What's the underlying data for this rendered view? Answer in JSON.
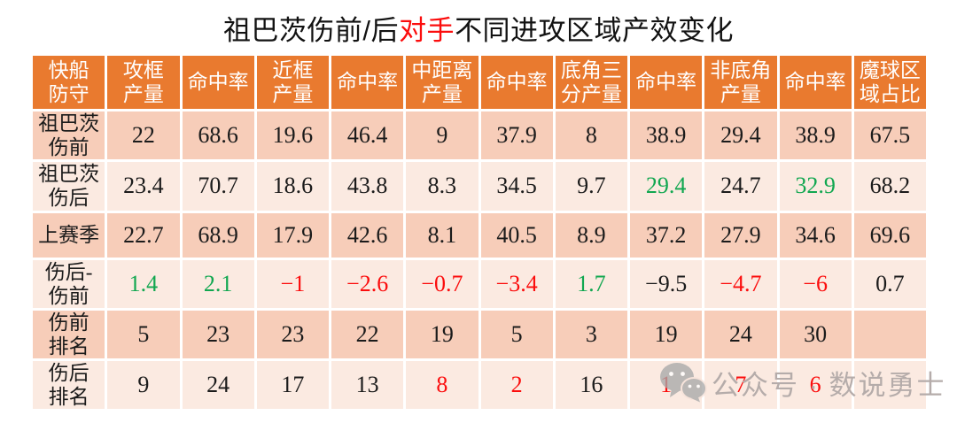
{
  "title": {
    "prefix": "祖巴茨伤前/后",
    "highlight": "对手",
    "suffix": "不同进攻区域产效变化",
    "highlight_color": "#fb0d0d"
  },
  "colors": {
    "header_bg": "#e97a2f",
    "header_text": "#ffffff",
    "row_dark": "#f7cdb9",
    "row_light": "#fbeae1",
    "cell_text": {
      "black": "#1b1b1b",
      "green": "#11a750",
      "red": "#fb0d0d"
    },
    "watermark_gray": "#b5acaa"
  },
  "table": {
    "columns": [
      "快船\n防守",
      "攻框\n产量",
      "命中率",
      "近框\n产量",
      "命中率",
      "中距离\n产量",
      "命中率",
      "底角三\n分产量",
      "命中率",
      "非底角\n产量",
      "命中率",
      "魔球区\n域占比"
    ],
    "rows": [
      {
        "label": "祖巴茨\n伤前",
        "shade": "dark",
        "cells": [
          {
            "v": "22",
            "c": "black"
          },
          {
            "v": "68.6",
            "c": "black"
          },
          {
            "v": "19.6",
            "c": "black"
          },
          {
            "v": "46.4",
            "c": "black"
          },
          {
            "v": "9",
            "c": "black"
          },
          {
            "v": "37.9",
            "c": "black"
          },
          {
            "v": "8",
            "c": "black"
          },
          {
            "v": "38.9",
            "c": "black"
          },
          {
            "v": "29.4",
            "c": "black"
          },
          {
            "v": "38.9",
            "c": "black"
          },
          {
            "v": "67.5",
            "c": "black"
          }
        ]
      },
      {
        "label": "祖巴茨\n伤后",
        "shade": "light",
        "cells": [
          {
            "v": "23.4",
            "c": "black"
          },
          {
            "v": "70.7",
            "c": "black"
          },
          {
            "v": "18.6",
            "c": "black"
          },
          {
            "v": "43.8",
            "c": "black"
          },
          {
            "v": "8.3",
            "c": "black"
          },
          {
            "v": "34.5",
            "c": "black"
          },
          {
            "v": "9.7",
            "c": "black"
          },
          {
            "v": "29.4",
            "c": "green"
          },
          {
            "v": "24.7",
            "c": "black"
          },
          {
            "v": "32.9",
            "c": "green"
          },
          {
            "v": "68.2",
            "c": "black"
          }
        ]
      },
      {
        "label": "上赛季",
        "shade": "dark",
        "cells": [
          {
            "v": "22.7",
            "c": "black"
          },
          {
            "v": "68.9",
            "c": "black"
          },
          {
            "v": "17.9",
            "c": "black"
          },
          {
            "v": "42.6",
            "c": "black"
          },
          {
            "v": "8.1",
            "c": "black"
          },
          {
            "v": "40.5",
            "c": "black"
          },
          {
            "v": "8.9",
            "c": "black"
          },
          {
            "v": "37.2",
            "c": "black"
          },
          {
            "v": "27.9",
            "c": "black"
          },
          {
            "v": "34.6",
            "c": "black"
          },
          {
            "v": "69.6",
            "c": "black"
          }
        ]
      },
      {
        "label": "伤后-\n伤前",
        "shade": "light",
        "cells": [
          {
            "v": "1.4",
            "c": "green"
          },
          {
            "v": "2.1",
            "c": "green"
          },
          {
            "v": "−1",
            "c": "red"
          },
          {
            "v": "−2.6",
            "c": "red"
          },
          {
            "v": "−0.7",
            "c": "red"
          },
          {
            "v": "−3.4",
            "c": "red"
          },
          {
            "v": "1.7",
            "c": "green"
          },
          {
            "v": "−9.5",
            "c": "black"
          },
          {
            "v": "−4.7",
            "c": "red"
          },
          {
            "v": "−6",
            "c": "red"
          },
          {
            "v": "0.7",
            "c": "black"
          }
        ]
      },
      {
        "label": "伤前\n排名",
        "shade": "dark",
        "cells": [
          {
            "v": "5",
            "c": "black"
          },
          {
            "v": "23",
            "c": "black"
          },
          {
            "v": "23",
            "c": "black"
          },
          {
            "v": "22",
            "c": "black"
          },
          {
            "v": "19",
            "c": "black"
          },
          {
            "v": "5",
            "c": "black"
          },
          {
            "v": "3",
            "c": "black"
          },
          {
            "v": "19",
            "c": "black"
          },
          {
            "v": "24",
            "c": "black"
          },
          {
            "v": "30",
            "c": "black"
          },
          {
            "v": "",
            "c": "black"
          }
        ]
      },
      {
        "label": "伤后\n排名",
        "shade": "light",
        "cells": [
          {
            "v": "9",
            "c": "black"
          },
          {
            "v": "24",
            "c": "black"
          },
          {
            "v": "17",
            "c": "black"
          },
          {
            "v": "13",
            "c": "black"
          },
          {
            "v": "8",
            "c": "red"
          },
          {
            "v": "2",
            "c": "red"
          },
          {
            "v": "16",
            "c": "black"
          },
          {
            "v": "1",
            "c": "red"
          },
          {
            "v": "7",
            "c": "red"
          },
          {
            "v": "6",
            "c": "red"
          },
          {
            "v": "",
            "c": "black"
          }
        ]
      }
    ]
  },
  "watermark": {
    "label": "公众号 · 数说勇士"
  }
}
